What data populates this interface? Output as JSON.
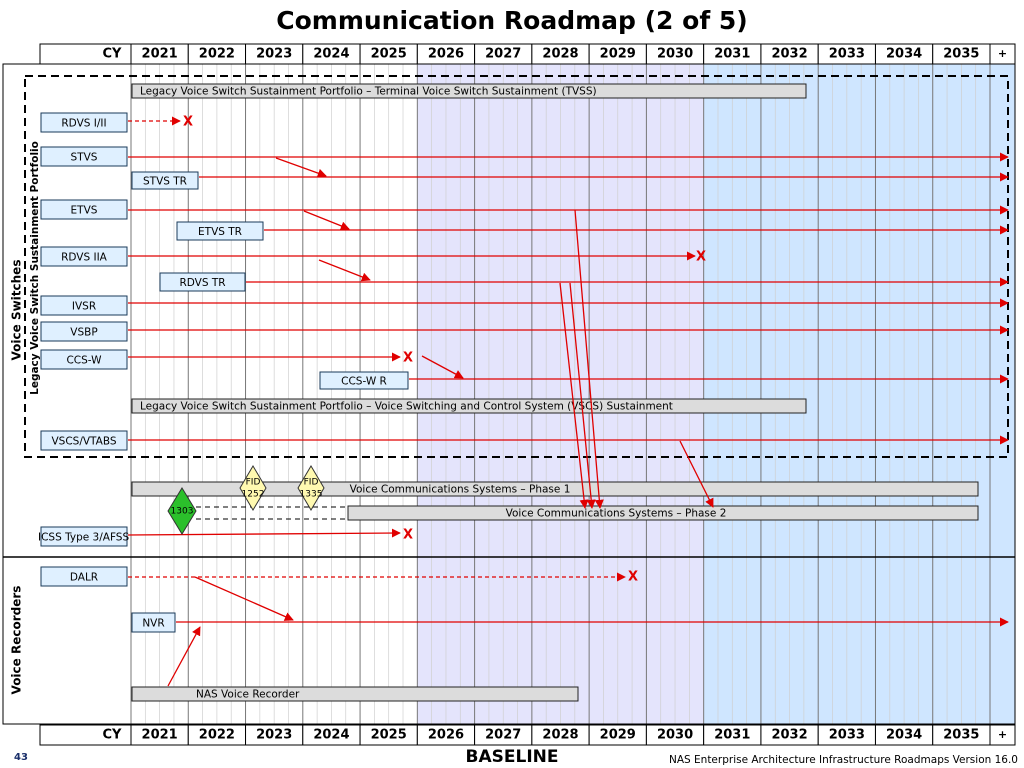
{
  "header": {
    "title": "Communication Roadmap (2 of 5)",
    "cy": "CY",
    "years": [
      "2021",
      "2022",
      "2023",
      "2024",
      "2025",
      "2026",
      "2027",
      "2028",
      "2029",
      "2030",
      "2031",
      "2032",
      "2033",
      "2034",
      "2035"
    ],
    "beyond": "+"
  },
  "sections": [
    "Voice Switches",
    "Voice Recorders"
  ],
  "portfolio": "Legacy Voice Switch Sustainment Portfolio",
  "programs": [
    "Legacy Voice Switch Sustainment Portfolio – Terminal Voice Switch Sustainment (TVSS)",
    "Legacy Voice Switch Sustainment Portfolio – Voice Switching and Control System (VSCS) Sustainment",
    "Voice Communications Systems – Phase 1",
    "Voice Communications Systems – Phase 2",
    "NAS Voice Recorder"
  ],
  "systems": [
    "RDVS I/II",
    "STVS",
    "STVS TR",
    "ETVS",
    "ETVS TR",
    "RDVS IIA",
    "RDVS TR",
    "IVSR",
    "VSBP",
    "CCS-W",
    "CCS-W R",
    "VSCS/VTABS",
    "ICSS Type 3/AFSS",
    "DALR",
    "NVR"
  ],
  "milestones": [
    [
      "FID",
      "1252"
    ],
    [
      "FID",
      "1335"
    ],
    [
      "1303"
    ]
  ],
  "end_marks": [
    "X",
    "X",
    "X",
    "X",
    "X"
  ],
  "footer": {
    "label": "BASELINE",
    "version": "NAS Enterprise Architecture Infrastructure Roadmaps Version 16.0",
    "page": "43"
  }
}
